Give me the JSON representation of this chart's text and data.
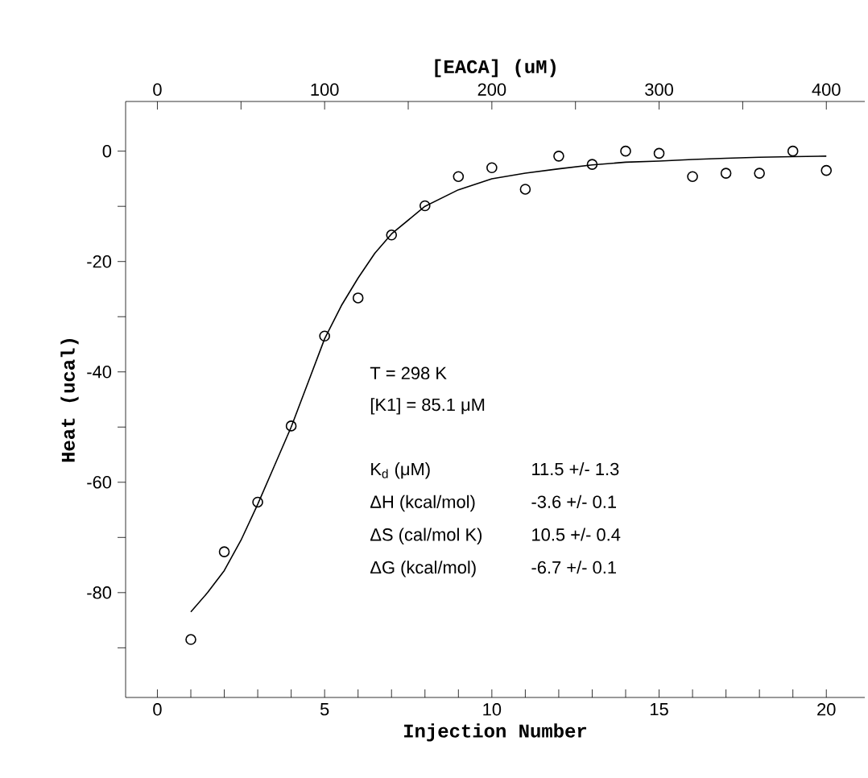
{
  "chart_data": {
    "type": "scatter",
    "xlabel": "Injection Number",
    "x2label": "[EACA]  (uM)",
    "ylabel": "Heat  (ucal)",
    "xlim": [
      -0.95,
      21.15
    ],
    "x2lim": [
      -19,
      423
    ],
    "ylim": [
      -99,
      9
    ],
    "xticks": [
      0,
      {
        "value": 1,
        "label": null
      },
      {
        "value": 2,
        "label": null
      },
      {
        "value": 3,
        "label": null
      },
      {
        "value": 4,
        "label": null
      },
      5,
      {
        "value": 6,
        "label": null
      },
      {
        "value": 7,
        "label": null
      },
      {
        "value": 8,
        "label": null
      },
      {
        "value": 9,
        "label": null
      },
      10,
      {
        "value": 11,
        "label": null
      },
      {
        "value": 12,
        "label": null
      },
      {
        "value": 13,
        "label": null
      },
      {
        "value": 14,
        "label": null
      },
      15,
      {
        "value": 16,
        "label": null
      },
      {
        "value": 17,
        "label": null
      },
      {
        "value": 18,
        "label": null
      },
      {
        "value": 19,
        "label": null
      },
      20
    ],
    "x2ticks": [
      0,
      {
        "value": 50,
        "label": null
      },
      100,
      {
        "value": 150,
        "label": null
      },
      200,
      {
        "value": 250,
        "label": null
      },
      300,
      {
        "value": 350,
        "label": null
      },
      400
    ],
    "yticks": [
      {
        "value": -90,
        "label": null
      },
      -80,
      {
        "value": -70,
        "label": null
      },
      -60,
      {
        "value": -50,
        "label": null
      },
      -40,
      {
        "value": -30,
        "label": null
      },
      -20,
      {
        "value": -10,
        "label": null
      },
      0
    ],
    "series": [
      {
        "marker": "circle",
        "color": "#000000",
        "x": [
          1,
          2,
          3,
          4,
          5,
          6,
          7,
          8,
          9,
          10,
          11,
          12,
          13,
          14,
          15,
          16,
          17,
          18,
          19,
          20
        ],
        "values": [
          -88.5,
          -72.6,
          -63.6,
          -49.8,
          -33.5,
          -26.6,
          -15.2,
          -9.9,
          -4.6,
          -3.0,
          -6.9,
          -0.9,
          -2.4,
          0,
          -0.4,
          -4.6,
          -4.0,
          -4.0,
          0,
          -3.5
        ]
      },
      {
        "type": "line",
        "marker": "none",
        "line_style": "solid",
        "color": "#000000",
        "x": [
          1,
          1.5,
          2,
          2.5,
          3,
          3.5,
          4,
          4.5,
          5,
          5.5,
          6,
          6.5,
          7,
          8,
          9,
          10,
          11,
          12,
          13,
          14,
          15,
          16,
          17,
          18,
          19,
          20
        ],
        "values": [
          -83.5,
          -80,
          -76,
          -70.5,
          -64,
          -57,
          -50,
          -42,
          -34,
          -28,
          -23,
          -18.5,
          -15,
          -10,
          -7,
          -5,
          -4,
          -3.2,
          -2.5,
          -2,
          -1.8,
          -1.5,
          -1.3,
          -1.1,
          -1,
          -0.9
        ]
      }
    ],
    "annotations": [
      "T = 298 K",
      "[K1] = 85.1 μM",
      "K$_{d}$ (μM)",
      "11.5 +/- 1.3",
      "ΔH (kcal/mol)",
      "-3.6 +/- 0.1",
      "ΔS (cal/mol K)",
      "10.5 +/- 0.4",
      "ΔG (kcal/mol)",
      "-6.7 +/- 0.1"
    ]
  }
}
